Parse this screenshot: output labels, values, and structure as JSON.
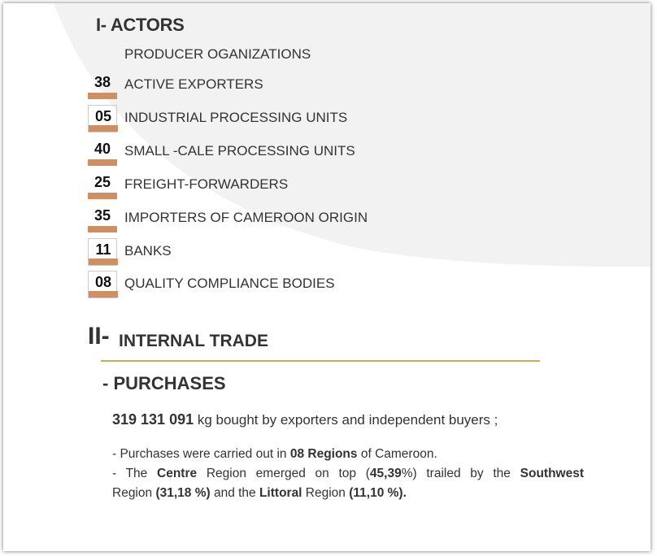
{
  "actors": {
    "title": "I- ACTORS",
    "items": [
      {
        "count": "",
        "label": "PRODUCER OGANIZATIONS"
      },
      {
        "count": "38",
        "label": "ACTIVE EXPORTERS"
      },
      {
        "count": "05",
        "label": "INDUSTRIAL PROCESSING UNITS"
      },
      {
        "count": "40",
        "label": "SMALL -CALE PROCESSING UNITS"
      },
      {
        "count": "25",
        "label": "FREIGHT-FORWARDERS"
      },
      {
        "count": "35",
        "label": "IMPORTERS OF CAMEROON ORIGIN"
      },
      {
        "count": "11",
        "label": "BANKS"
      },
      {
        "count": "08",
        "label": "QUALITY COMPLIANCE BODIES"
      }
    ]
  },
  "internal_trade": {
    "roman": "II-",
    "title": "INTERNAL TRADE"
  },
  "purchases": {
    "title": "- PURCHASES",
    "quantity": "319 131 091",
    "quantity_text": " kg bought by exporters and independent buyers  ;",
    "line1_a": "- Purchases were carried out in ",
    "line1_b": "08 Regions",
    "line1_c": " of Cameroon.",
    "line2_a": "- The  ",
    "line2_b": "Centre",
    "line2_c": " Region emerged on top (",
    "line2_d": "45,39",
    "line2_e": "%) trailed by the ",
    "line2_f": "Southwest",
    "line3_a": "Region ",
    "line3_b": "(31,18 %)",
    "line3_c": " and the ",
    "line3_d": "Littoral",
    "line3_e": " Region ",
    "line3_f": "(11,10 %)."
  },
  "colors": {
    "badge_bar": "#cf8f63",
    "rule": "#d6a84e",
    "swoosh": "#f2f2f2",
    "text": "#333333"
  }
}
